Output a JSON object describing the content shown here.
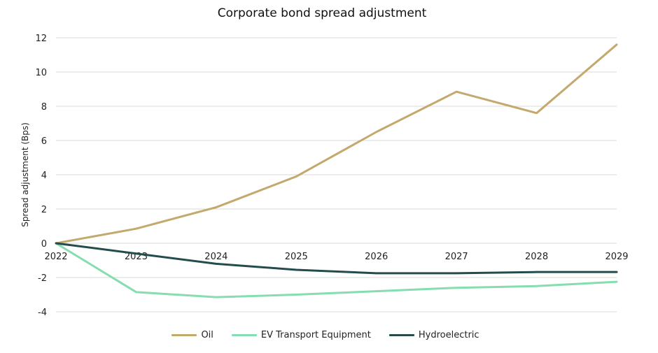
{
  "chart_data": {
    "type": "line",
    "title": "Corporate bond spread adjustment",
    "xlabel": "",
    "ylabel": "Spread adjustment (Bps)",
    "x": [
      "2022",
      "2023",
      "2024",
      "2025",
      "2026",
      "2027",
      "2028",
      "2029"
    ],
    "ylim": [
      -4,
      12
    ],
    "yticks": [
      -4,
      -2,
      0,
      2,
      4,
      6,
      8,
      10,
      12
    ],
    "grid": true,
    "legend_position": "bottom",
    "series": [
      {
        "name": "Oil",
        "color": "#c4a96e",
        "values": [
          0,
          0.85,
          2.1,
          3.9,
          6.5,
          8.85,
          7.6,
          11.6
        ]
      },
      {
        "name": "EV Transport Equipment",
        "color": "#86ddb0",
        "values": [
          0,
          -2.85,
          -3.15,
          -3.0,
          -2.8,
          -2.6,
          -2.5,
          -2.25
        ]
      },
      {
        "name": "Hydroelectric",
        "color": "#244c4c",
        "values": [
          0,
          -0.6,
          -1.2,
          -1.55,
          -1.75,
          -1.75,
          -1.68,
          -1.68
        ]
      }
    ]
  }
}
